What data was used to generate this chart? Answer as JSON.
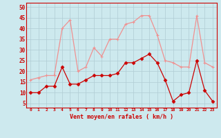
{
  "x": [
    0,
    1,
    2,
    3,
    4,
    5,
    6,
    7,
    8,
    9,
    10,
    11,
    12,
    13,
    14,
    15,
    16,
    17,
    18,
    19,
    20,
    21,
    22,
    23
  ],
  "wind_avg": [
    10,
    10,
    13,
    13,
    22,
    14,
    14,
    16,
    18,
    18,
    18,
    19,
    24,
    24,
    26,
    28,
    24,
    16,
    6,
    9,
    10,
    25,
    11,
    6
  ],
  "wind_gust": [
    16,
    17,
    18,
    18,
    40,
    44,
    20,
    22,
    31,
    27,
    35,
    35,
    42,
    43,
    46,
    46,
    37,
    25,
    24,
    22,
    22,
    46,
    24,
    22
  ],
  "bg_color": "#cde9ee",
  "grid_color": "#b0ccd4",
  "line_avg_color": "#cc0000",
  "line_gust_color": "#f09090",
  "xlabel": "Vent moyen/en rafales ( km/h )",
  "ylabel_ticks": [
    5,
    10,
    15,
    20,
    25,
    30,
    35,
    40,
    45,
    50
  ],
  "ylim": [
    3,
    52
  ],
  "xlim": [
    -0.5,
    23.5
  ],
  "marker_avg": "D",
  "marker_gust": "+"
}
